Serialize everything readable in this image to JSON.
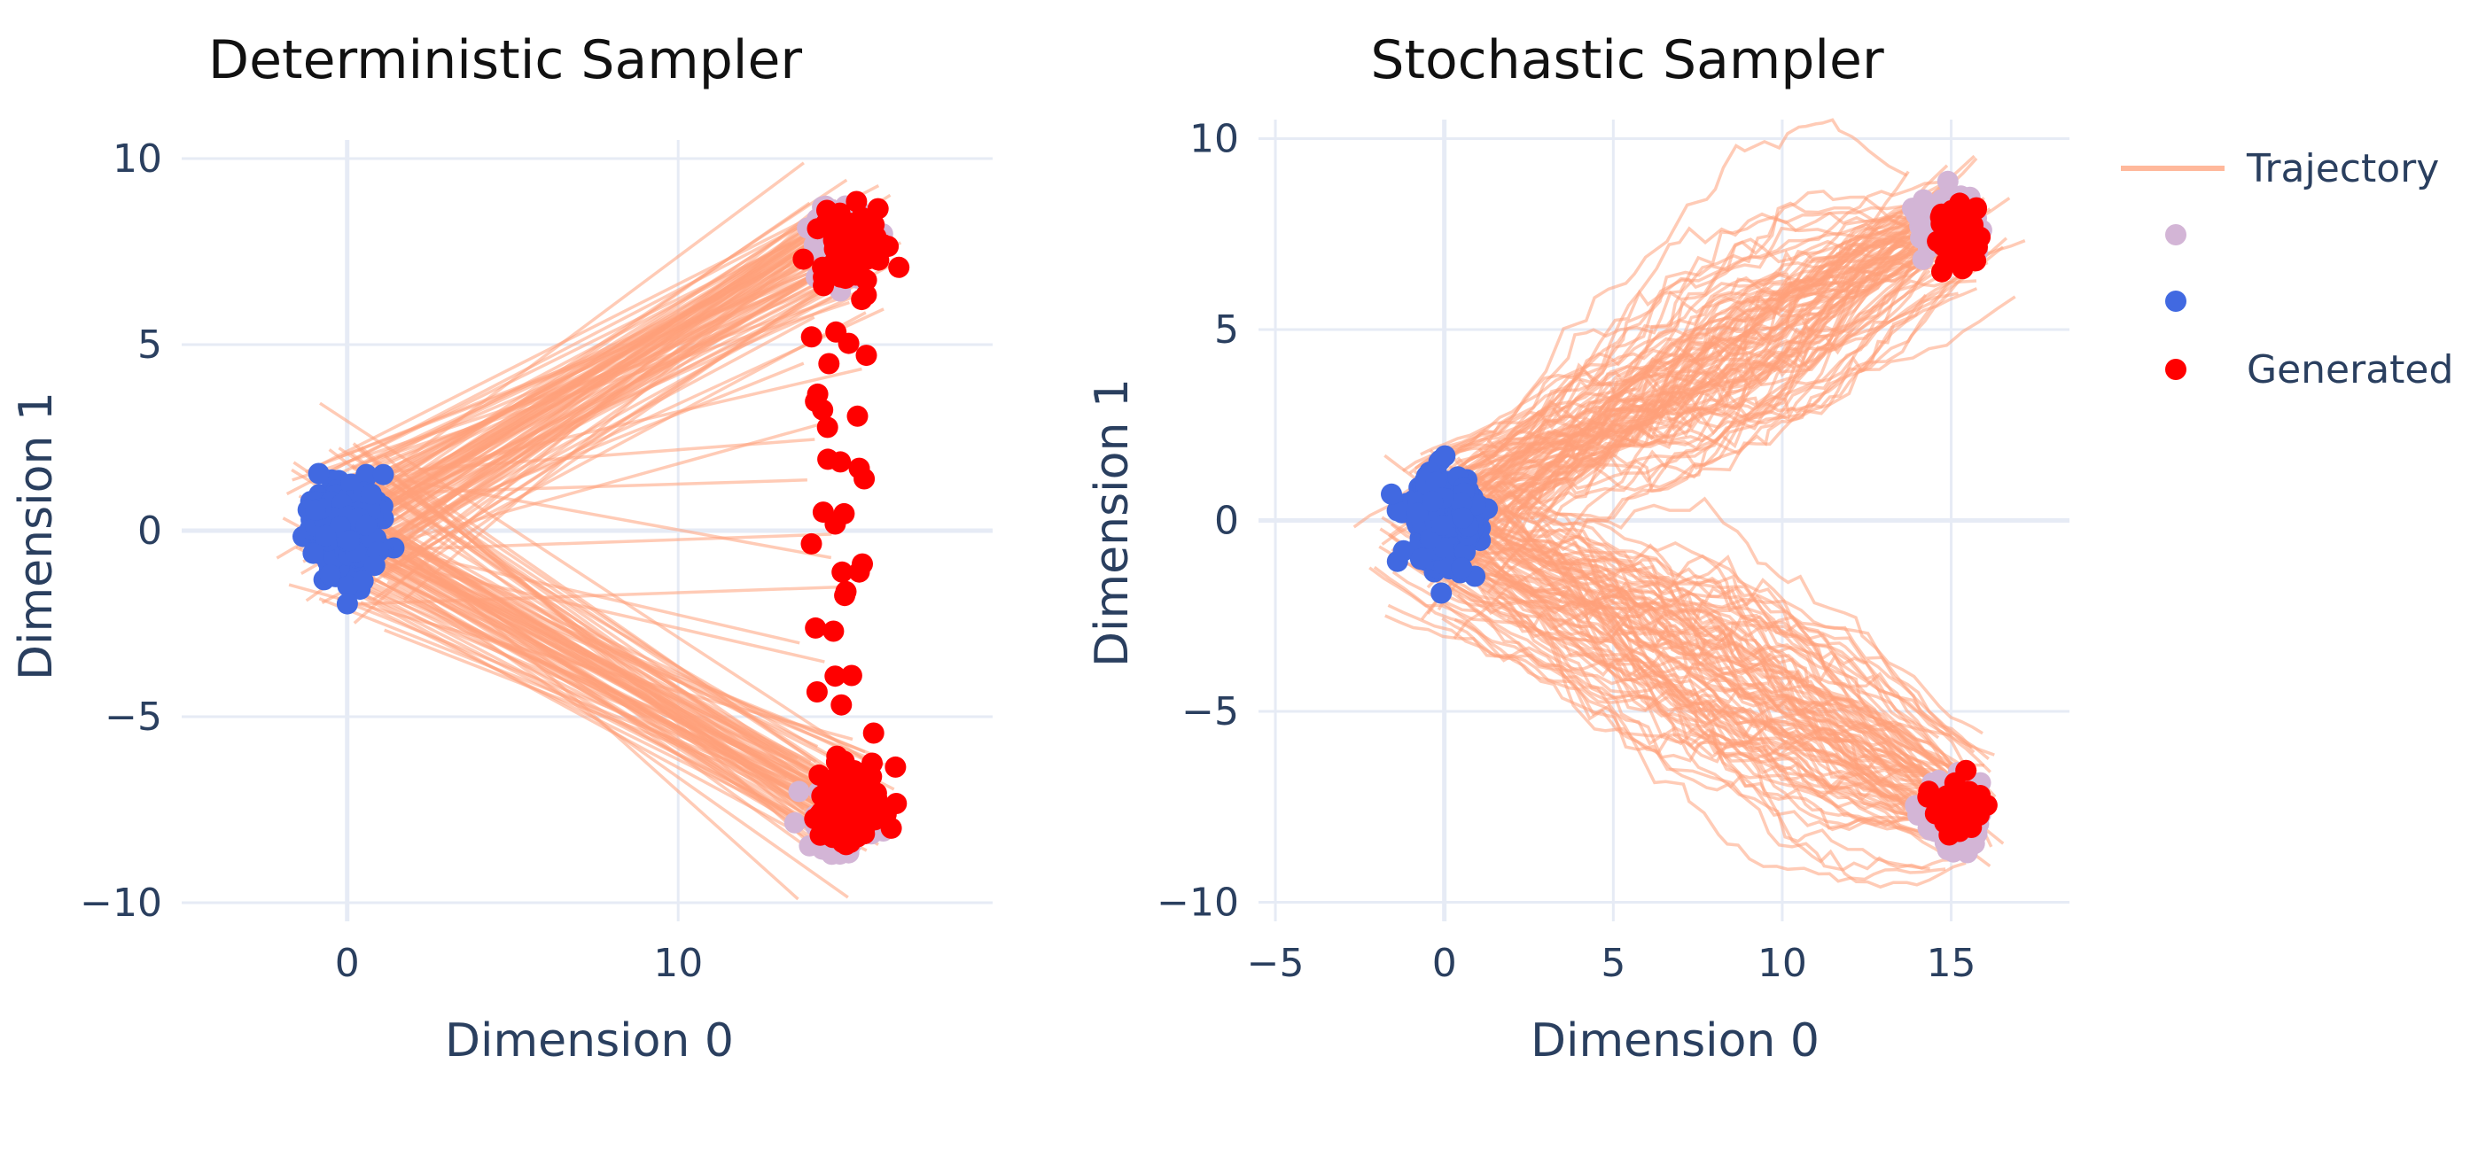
{
  "chart_data": [
    {
      "type": "scatter",
      "title": "Deterministic Sampler",
      "xlabel": "Dimension 0",
      "ylabel": "Dimension 1",
      "xlim": [
        -5,
        19.5
      ],
      "ylim": [
        -10.5,
        10.5
      ],
      "xticks": [
        0,
        10
      ],
      "yticks": [
        10,
        5,
        0,
        -5,
        -10
      ],
      "tick_labels_x": [
        "0",
        "10"
      ],
      "tick_labels_y": [
        "10",
        "5",
        "0",
        "−5",
        "−10"
      ],
      "grid": true,
      "series": [
        {
          "name": "Trajectory",
          "kind": "lines",
          "color": "#ffa07a",
          "count": 180,
          "start_center": [
            0,
            0
          ],
          "start_spread": [
            0.9,
            1.1
          ],
          "end_clusters": [
            [
              15.0,
              7.8
            ],
            [
              15.0,
              -7.5
            ]
          ],
          "path": "straight"
        },
        {
          "name": "",
          "kind": "markers",
          "color": "#d3b5d6",
          "clusters": [
            [
              15.0,
              7.8,
              0.8,
              0.8
            ],
            [
              15.0,
              -7.6,
              0.8,
              0.8
            ]
          ],
          "count": 260
        },
        {
          "name": "",
          "kind": "markers",
          "color": "#4169e1",
          "clusters": [
            [
              0,
              0,
              0.9,
              1.1
            ]
          ],
          "count": 300
        },
        {
          "name": "Generated",
          "kind": "markers",
          "color": "#ff0000",
          "clusters": [
            [
              15.3,
              7.6,
              0.85,
              1.0
            ],
            [
              15.2,
              -7.3,
              0.85,
              1.0
            ]
          ],
          "count": 220,
          "bridge_points": true
        }
      ]
    },
    {
      "type": "scatter",
      "title": "Stochastic Sampler",
      "xlabel": "Dimension 0",
      "ylabel": "Dimension 1",
      "xlim": [
        -5.5,
        18.5
      ],
      "ylim": [
        -10.5,
        10.5
      ],
      "xticks": [
        -5,
        0,
        5,
        10,
        15
      ],
      "yticks": [
        10,
        5,
        0,
        -5,
        -10
      ],
      "tick_labels_x": [
        "−5",
        "0",
        "5",
        "10",
        "15"
      ],
      "tick_labels_y": [
        "10",
        "5",
        "0",
        "−5",
        "−10"
      ],
      "grid": true,
      "series": [
        {
          "name": "Trajectory",
          "kind": "lines",
          "color": "#ffa07a",
          "count": 180,
          "start_center": [
            0,
            0
          ],
          "start_spread": [
            0.9,
            1.1
          ],
          "end_clusters": [
            [
              15.0,
              7.7
            ],
            [
              15.0,
              -7.5
            ]
          ],
          "path": "noisy"
        },
        {
          "name": "",
          "kind": "markers",
          "color": "#d3b5d6",
          "clusters": [
            [
              15.0,
              7.8,
              0.75,
              0.75
            ],
            [
              15.0,
              -7.6,
              0.75,
              0.75
            ]
          ],
          "count": 260
        },
        {
          "name": "",
          "kind": "markers",
          "color": "#4169e1",
          "clusters": [
            [
              0,
              0,
              0.9,
              1.1
            ]
          ],
          "count": 300
        },
        {
          "name": "Generated",
          "kind": "markers",
          "color": "#ff0000",
          "clusters": [
            [
              15.2,
              7.6,
              0.55,
              0.65
            ],
            [
              15.2,
              -7.6,
              0.55,
              0.5
            ]
          ],
          "count": 220,
          "bridge_points": false
        }
      ]
    }
  ],
  "legend": {
    "placement": "right",
    "entries": [
      {
        "label": "Trajectory",
        "symbol": "line",
        "color": "#ffa07a"
      },
      {
        "label": "",
        "symbol": "dot",
        "color": "#d3b5d6"
      },
      {
        "label": "",
        "symbol": "dot",
        "color": "#4169e1"
      },
      {
        "label": "Generated",
        "symbol": "dot",
        "color": "#ff0000"
      }
    ]
  }
}
